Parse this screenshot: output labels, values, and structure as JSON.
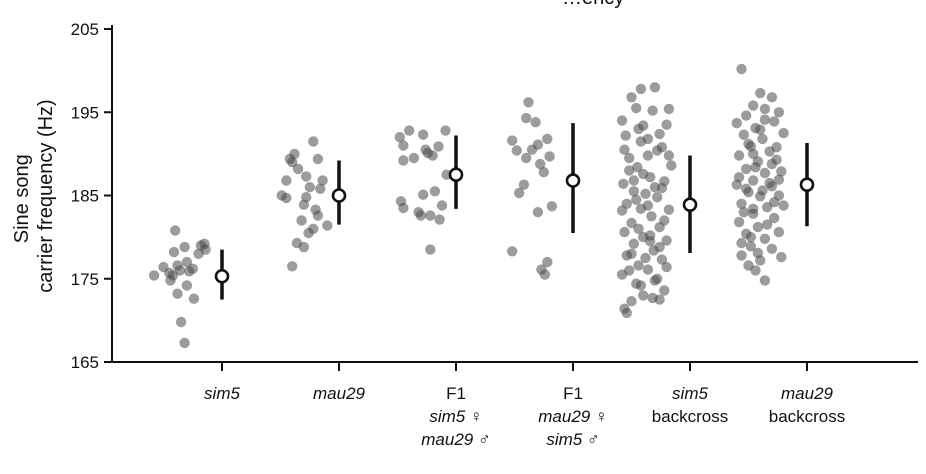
{
  "chart_data": {
    "type": "scatter",
    "title": "…ency",
    "ylabel_lines": [
      "Sine song",
      "carrier frequency (Hz)"
    ],
    "ylim": [
      165,
      205
    ],
    "yticks": [
      165,
      175,
      185,
      195,
      205
    ],
    "grid": false,
    "categories": [
      {
        "lines": [
          {
            "text": "sim5",
            "italic": true
          }
        ]
      },
      {
        "lines": [
          {
            "text": "mau29",
            "italic": true
          }
        ]
      },
      {
        "lines": [
          {
            "text": "F1",
            "italic": false
          },
          {
            "text": "sim5 ♀",
            "italic": true
          },
          {
            "text": "mau29 ♂",
            "italic": true
          }
        ]
      },
      {
        "lines": [
          {
            "text": "F1",
            "italic": false
          },
          {
            "text": "mau29 ♀",
            "italic": true
          },
          {
            "text": "sim5 ♂",
            "italic": true
          }
        ]
      },
      {
        "lines": [
          {
            "text": "sim5",
            "italic": true
          },
          {
            "text": "backcross",
            "italic": false
          }
        ]
      },
      {
        "lines": [
          {
            "text": "mau29",
            "italic": true
          },
          {
            "text": "backcross",
            "italic": false
          }
        ]
      }
    ],
    "series": [
      {
        "points": [
          [
            -0.4,
            180.8
          ],
          [
            -0.15,
            179.2
          ],
          [
            -0.32,
            178.8
          ],
          [
            -0.5,
            176.4
          ],
          [
            -0.45,
            175.7
          ],
          [
            -0.42,
            175.4
          ],
          [
            -0.38,
            176.6
          ],
          [
            -0.36,
            176.0
          ],
          [
            -0.58,
            175.4
          ],
          [
            -0.2,
            178.0
          ],
          [
            -0.3,
            177.0
          ],
          [
            -0.25,
            176.2
          ],
          [
            -0.44,
            174.8
          ],
          [
            -0.3,
            174.2
          ],
          [
            -0.38,
            173.2
          ],
          [
            -0.24,
            172.6
          ],
          [
            -0.35,
            169.8
          ],
          [
            -0.32,
            167.3
          ],
          [
            -0.14,
            178.5
          ],
          [
            -0.28,
            175.9
          ],
          [
            -0.18,
            179.0
          ],
          [
            -0.41,
            178.2
          ]
        ],
        "mean": 175.3,
        "err_low": 172.5,
        "err_high": 178.5
      },
      {
        "points": [
          [
            -0.22,
            191.5
          ],
          [
            -0.38,
            190.0
          ],
          [
            -0.42,
            189.4
          ],
          [
            -0.18,
            189.4
          ],
          [
            -0.35,
            188.2
          ],
          [
            -0.28,
            187.3
          ],
          [
            -0.14,
            186.8
          ],
          [
            -0.45,
            186.8
          ],
          [
            -0.25,
            186.0
          ],
          [
            -0.49,
            185.0
          ],
          [
            -0.45,
            184.7
          ],
          [
            -0.3,
            183.9
          ],
          [
            -0.2,
            183.3
          ],
          [
            -0.32,
            182.0
          ],
          [
            -0.18,
            182.6
          ],
          [
            -0.1,
            181.4
          ],
          [
            -0.22,
            181.0
          ],
          [
            -0.26,
            180.5
          ],
          [
            -0.36,
            179.3
          ],
          [
            -0.3,
            178.8
          ],
          [
            -0.4,
            176.5
          ],
          [
            -0.28,
            184.8
          ],
          [
            -0.16,
            185.8
          ],
          [
            -0.4,
            189.0
          ]
        ],
        "mean": 185.0,
        "err_low": 181.5,
        "err_high": 189.2
      },
      {
        "points": [
          [
            -0.4,
            192.8
          ],
          [
            -0.28,
            192.3
          ],
          [
            -0.48,
            192.0
          ],
          [
            -0.45,
            191.0
          ],
          [
            -0.26,
            190.5
          ],
          [
            -0.09,
            192.8
          ],
          [
            -0.24,
            190.1
          ],
          [
            -0.15,
            190.9
          ],
          [
            -0.2,
            189.8
          ],
          [
            -0.36,
            189.5
          ],
          [
            -0.45,
            189.2
          ],
          [
            -0.08,
            187.5
          ],
          [
            -0.28,
            185.1
          ],
          [
            -0.18,
            185.5
          ],
          [
            -0.47,
            184.3
          ],
          [
            -0.45,
            183.5
          ],
          [
            -0.3,
            182.6
          ],
          [
            -0.22,
            182.6
          ],
          [
            -0.14,
            182.1
          ],
          [
            -0.22,
            178.5
          ],
          [
            -0.32,
            183.0
          ],
          [
            -0.12,
            183.8
          ]
        ],
        "mean": 187.5,
        "err_low": 183.4,
        "err_high": 192.2
      },
      {
        "points": [
          [
            -0.38,
            196.2
          ],
          [
            -0.4,
            194.3
          ],
          [
            -0.32,
            193.8
          ],
          [
            -0.52,
            191.6
          ],
          [
            -0.3,
            191.1
          ],
          [
            -0.22,
            191.8
          ],
          [
            -0.35,
            190.5
          ],
          [
            -0.2,
            189.7
          ],
          [
            -0.48,
            190.4
          ],
          [
            -0.28,
            188.8
          ],
          [
            -0.25,
            187.8
          ],
          [
            -0.42,
            186.3
          ],
          [
            -0.46,
            185.3
          ],
          [
            -0.18,
            183.7
          ],
          [
            -0.52,
            178.3
          ],
          [
            -0.22,
            177.0
          ],
          [
            -0.27,
            176.1
          ],
          [
            -0.24,
            175.5
          ],
          [
            -0.3,
            183.0
          ],
          [
            -0.4,
            189.5
          ]
        ],
        "mean": 186.8,
        "err_low": 180.5,
        "err_high": 193.7
      },
      {
        "points": [
          [
            -0.42,
            197.8
          ],
          [
            -0.3,
            198.0
          ],
          [
            -0.5,
            196.8
          ],
          [
            -0.46,
            195.5
          ],
          [
            -0.32,
            195.2
          ],
          [
            -0.18,
            195.4
          ],
          [
            -0.58,
            194.0
          ],
          [
            -0.4,
            193.4
          ],
          [
            -0.55,
            192.2
          ],
          [
            -0.42,
            191.5
          ],
          [
            -0.2,
            193.5
          ],
          [
            -0.26,
            192.4
          ],
          [
            -0.52,
            189.5
          ],
          [
            -0.36,
            189.8
          ],
          [
            -0.28,
            190.4
          ],
          [
            -0.16,
            188.6
          ],
          [
            -0.45,
            188.4
          ],
          [
            -0.34,
            187.2
          ],
          [
            -0.57,
            186.4
          ],
          [
            -0.22,
            186.7
          ],
          [
            -0.48,
            185.5
          ],
          [
            -0.38,
            185.2
          ],
          [
            -0.28,
            184.8
          ],
          [
            -0.54,
            184.0
          ],
          [
            -0.42,
            183.4
          ],
          [
            -0.18,
            183.3
          ],
          [
            -0.33,
            182.5
          ],
          [
            -0.5,
            181.7
          ],
          [
            -0.26,
            181.2
          ],
          [
            -0.56,
            180.6
          ],
          [
            -0.4,
            180.0
          ],
          [
            -0.2,
            179.6
          ],
          [
            -0.48,
            179.2
          ],
          [
            -0.31,
            178.4
          ],
          [
            -0.54,
            177.8
          ],
          [
            -0.24,
            177.3
          ],
          [
            -0.44,
            176.6
          ],
          [
            -0.36,
            176.1
          ],
          [
            -0.58,
            175.5
          ],
          [
            -0.28,
            175.0
          ],
          [
            -0.46,
            174.4
          ],
          [
            -0.22,
            173.6
          ],
          [
            -0.4,
            173.0
          ],
          [
            -0.32,
            172.7
          ],
          [
            -0.5,
            172.3
          ],
          [
            -0.56,
            171.4
          ],
          [
            -0.54,
            170.9
          ],
          [
            -0.26,
            172.5
          ],
          [
            -0.44,
            193.0
          ],
          [
            -0.36,
            191.8
          ],
          [
            -0.24,
            190.8
          ],
          [
            -0.52,
            188.0
          ],
          [
            -0.4,
            187.6
          ],
          [
            -0.3,
            186.0
          ],
          [
            -0.46,
            184.5
          ],
          [
            -0.36,
            183.8
          ],
          [
            -0.22,
            182.0
          ],
          [
            -0.44,
            181.0
          ],
          [
            -0.34,
            180.2
          ],
          [
            -0.26,
            178.8
          ],
          [
            -0.5,
            178.0
          ],
          [
            -0.38,
            177.5
          ],
          [
            -0.2,
            176.4
          ],
          [
            -0.52,
            176.0
          ],
          [
            -0.3,
            174.8
          ],
          [
            -0.42,
            174.2
          ],
          [
            -0.56,
            190.5
          ],
          [
            -0.18,
            189.8
          ],
          [
            -0.48,
            186.8
          ],
          [
            -0.24,
            185.9
          ],
          [
            -0.58,
            183.2
          ],
          [
            -0.34,
            179.5
          ]
        ],
        "mean": 183.9,
        "err_low": 178.1,
        "err_high": 189.8
      },
      {
        "points": [
          [
            -0.56,
            200.2
          ],
          [
            -0.4,
            197.3
          ],
          [
            -0.3,
            196.8
          ],
          [
            -0.46,
            195.8
          ],
          [
            -0.36,
            195.4
          ],
          [
            -0.52,
            194.6
          ],
          [
            -0.24,
            195.0
          ],
          [
            -0.6,
            193.7
          ],
          [
            -0.44,
            193.1
          ],
          [
            -0.28,
            193.9
          ],
          [
            -0.54,
            192.3
          ],
          [
            -0.38,
            191.8
          ],
          [
            -0.2,
            192.5
          ],
          [
            -0.48,
            190.9
          ],
          [
            -0.32,
            190.3
          ],
          [
            -0.58,
            189.8
          ],
          [
            -0.42,
            189.1
          ],
          [
            -0.26,
            189.3
          ],
          [
            -0.52,
            188.2
          ],
          [
            -0.36,
            187.7
          ],
          [
            -0.22,
            187.9
          ],
          [
            -0.46,
            186.8
          ],
          [
            -0.6,
            186.3
          ],
          [
            -0.3,
            186.1
          ],
          [
            -0.5,
            185.4
          ],
          [
            -0.4,
            184.9
          ],
          [
            -0.24,
            185.0
          ],
          [
            -0.56,
            184.0
          ],
          [
            -0.34,
            183.6
          ],
          [
            -0.46,
            182.8
          ],
          [
            -0.28,
            182.3
          ],
          [
            -0.58,
            181.8
          ],
          [
            -0.42,
            181.2
          ],
          [
            -0.52,
            180.4
          ],
          [
            -0.36,
            179.8
          ],
          [
            -0.24,
            180.6
          ],
          [
            -0.48,
            178.9
          ],
          [
            -0.3,
            178.6
          ],
          [
            -0.56,
            177.8
          ],
          [
            -0.4,
            177.2
          ],
          [
            -0.5,
            176.6
          ],
          [
            -0.44,
            176.0
          ],
          [
            -0.36,
            174.8
          ],
          [
            -0.22,
            177.6
          ],
          [
            -0.54,
            183.0
          ],
          [
            -0.32,
            186.5
          ],
          [
            -0.44,
            188.4
          ],
          [
            -0.26,
            190.8
          ],
          [
            -0.5,
            191.2
          ],
          [
            -0.38,
            185.6
          ],
          [
            -0.28,
            184.2
          ],
          [
            -0.46,
            183.4
          ],
          [
            -0.34,
            181.5
          ],
          [
            -0.2,
            183.8
          ],
          [
            -0.56,
            179.3
          ],
          [
            -0.42,
            178.1
          ],
          [
            -0.3,
            188.8
          ],
          [
            -0.4,
            192.9
          ],
          [
            -0.58,
            187.2
          ],
          [
            -0.36,
            194.1
          ],
          [
            -0.48,
            180.0
          ],
          [
            -0.24,
            186.9
          ],
          [
            -0.52,
            185.8
          ],
          [
            -0.46,
            190.0
          ]
        ],
        "mean": 186.3,
        "err_low": 181.3,
        "err_high": 191.3
      }
    ]
  }
}
